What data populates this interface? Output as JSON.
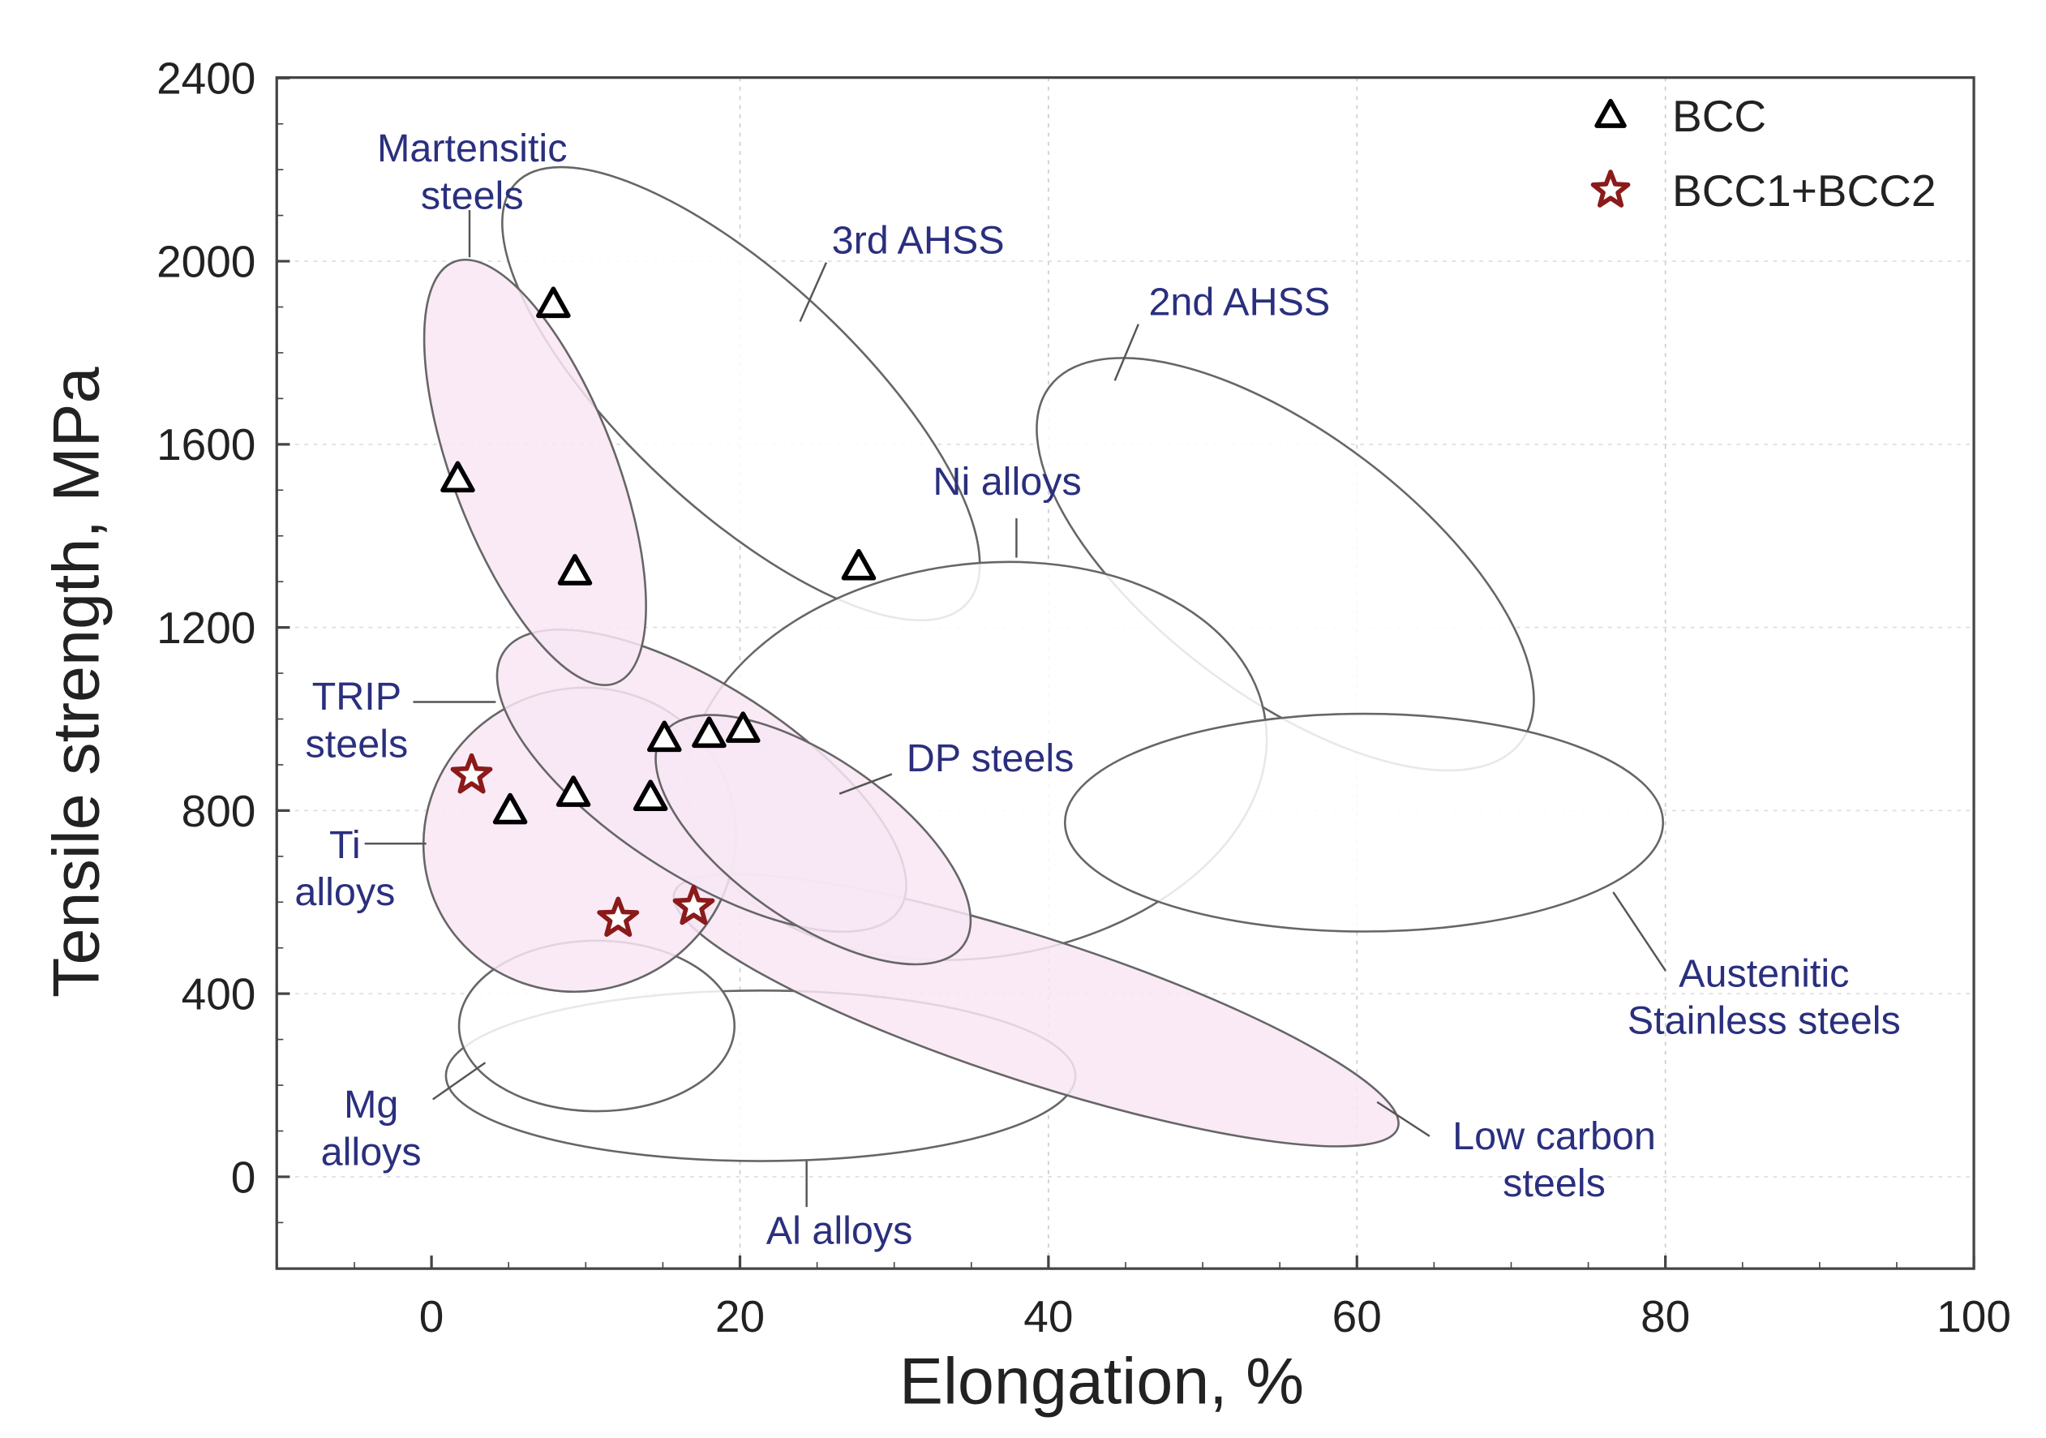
{
  "chart_data": {
    "type": "scatter",
    "title": "",
    "xlabel": "Elongation, %",
    "ylabel": "Tensile strength, MPa",
    "xlim": [
      -10,
      100
    ],
    "ylim": [
      -200,
      2400
    ],
    "xticks": [
      "0",
      "20",
      "40",
      "60",
      "80",
      "100"
    ],
    "yticks": [
      "0",
      "400",
      "800",
      "1200",
      "1600",
      "2000",
      "2400"
    ],
    "grid": true,
    "legend_position": "top-right",
    "series": [
      {
        "name": "BCC",
        "marker": "triangle",
        "color": "#000000",
        "points": [
          [
            7.9,
            1905
          ],
          [
            1.7,
            1524
          ],
          [
            9.3,
            1321
          ],
          [
            27.7,
            1332
          ],
          [
            15.1,
            957
          ],
          [
            18.0,
            966
          ],
          [
            20.2,
            977
          ],
          [
            9.2,
            837
          ],
          [
            14.2,
            828
          ],
          [
            5.1,
            799
          ]
        ]
      },
      {
        "name": "BCC1+BCC2",
        "marker": "star",
        "color": "#8b1a1a",
        "points": [
          [
            2.6,
            877
          ],
          [
            12.1,
            564
          ],
          [
            17.0,
            590
          ]
        ]
      }
    ],
    "regions": [
      {
        "label": [
          "Martensitic",
          "steels"
        ],
        "fill": "#f8e6f4"
      },
      {
        "label": [
          "3rd AHSS"
        ],
        "fill": "#ffffff"
      },
      {
        "label": [
          "2nd AHSS"
        ],
        "fill": "#ffffff"
      },
      {
        "label": [
          "Ni alloys"
        ],
        "fill": "#ffffff"
      },
      {
        "label": [
          "Austenitic",
          "Stainless steels"
        ],
        "fill": "#ffffff"
      },
      {
        "label": [
          "TRIP",
          "steels"
        ],
        "fill": "#f8e6f4"
      },
      {
        "label": [
          "DP steels"
        ],
        "fill": "#f8e6f4"
      },
      {
        "label": [
          "Ti",
          "alloys"
        ],
        "fill": "#f8e6f4"
      },
      {
        "label": [
          "Low carbon",
          "steels"
        ],
        "fill": "#f8e6f4"
      },
      {
        "label": [
          "Mg",
          "alloys"
        ],
        "fill": "#ffffff"
      },
      {
        "label": [
          "Al alloys"
        ],
        "fill": "#ffffff"
      }
    ]
  }
}
